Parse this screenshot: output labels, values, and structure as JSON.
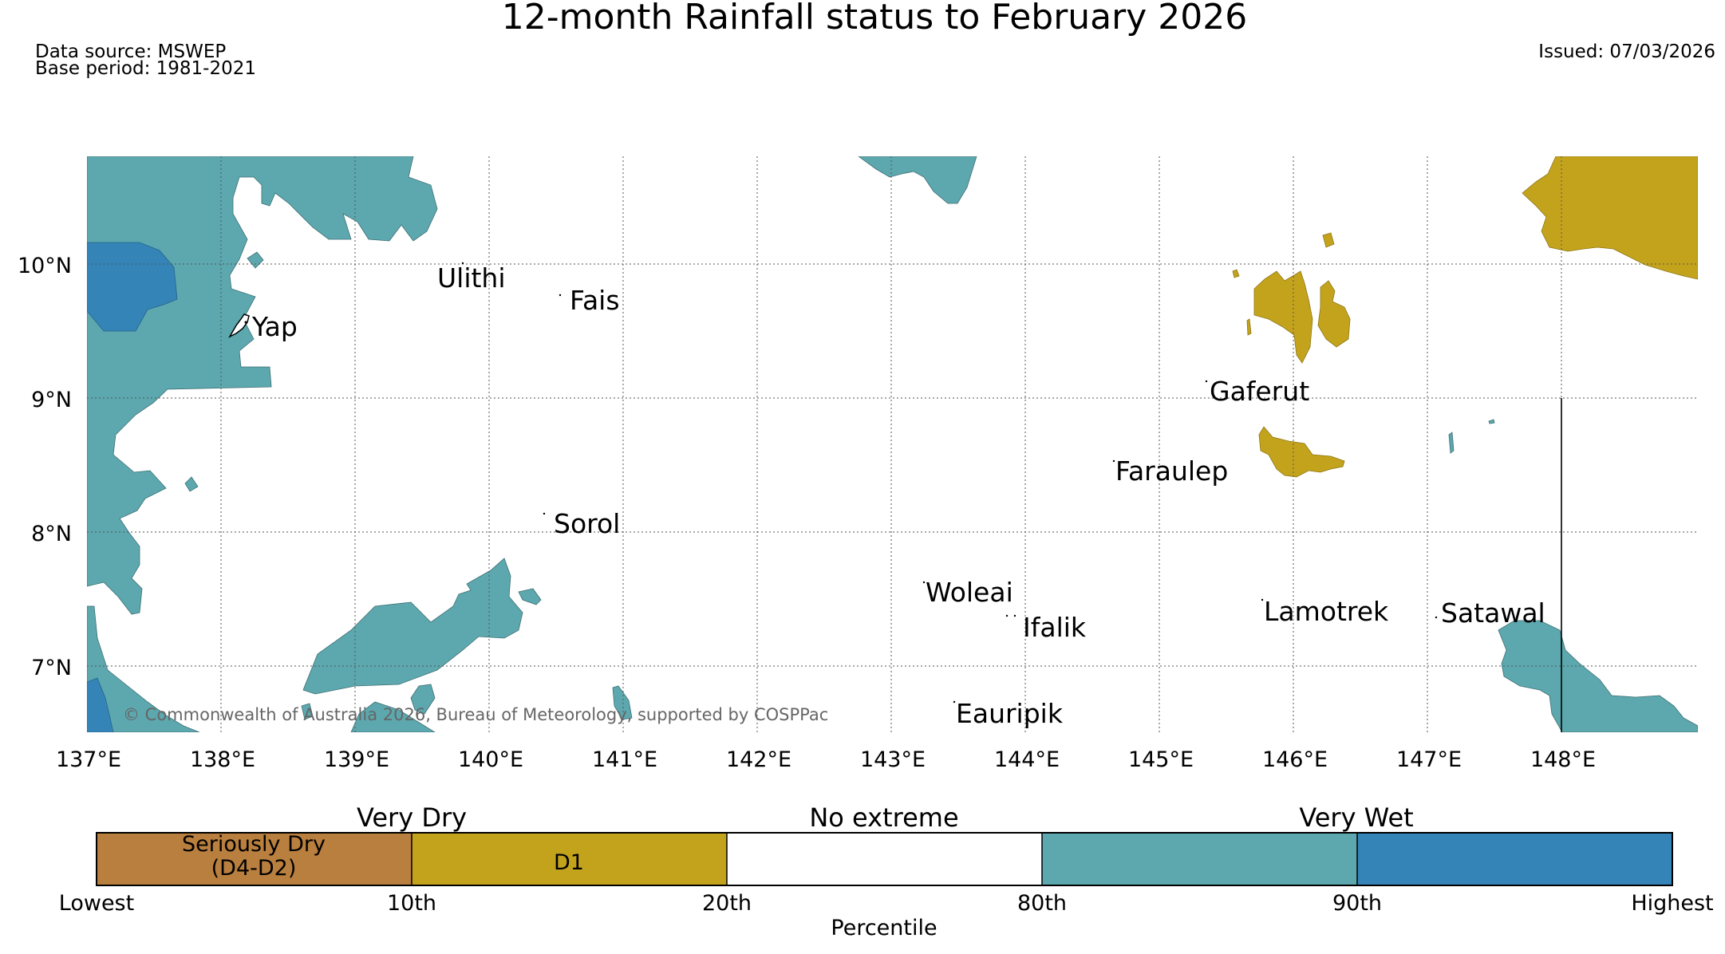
{
  "title": "12-month Rainfall status to February 2026",
  "data_source": "Data source: MSWEP",
  "base_period": "Base period: 1981-2021",
  "issued": "Issued: 07/03/2026",
  "copyright": "© Commonwealth of Australia 2026, Bureau of Meteorology, supported by COSPPac",
  "map": {
    "lat_labels": [
      "10°N",
      "9°N",
      "8°N",
      "7°N"
    ],
    "lon_labels": [
      "137°E",
      "138°E",
      "139°E",
      "140°E",
      "141°E",
      "142°E",
      "143°E",
      "144°E",
      "145°E",
      "146°E",
      "147°E",
      "148°E"
    ],
    "places": [
      {
        "name": "Yap",
        "lon": 138.2,
        "lat": 9.5
      },
      {
        "name": "Ulithi",
        "lon": 139.7,
        "lat": 9.9
      },
      {
        "name": "Fais",
        "lon": 140.5,
        "lat": 9.75
      },
      {
        "name": "Gaferut",
        "lon": 145.4,
        "lat": 9.05
      },
      {
        "name": "Faraulep",
        "lon": 144.65,
        "lat": 8.55
      },
      {
        "name": "Sorol",
        "lon": 140.4,
        "lat": 8.1
      },
      {
        "name": "Woleai",
        "lon": 143.3,
        "lat": 7.6
      },
      {
        "name": "Ifalik",
        "lon": 144.0,
        "lat": 7.3
      },
      {
        "name": "Lamotrek",
        "lon": 145.75,
        "lat": 7.45
      },
      {
        "name": "Satawal",
        "lon": 147.1,
        "lat": 7.35
      },
      {
        "name": "Eauripik",
        "lon": 143.5,
        "lat": 6.7
      }
    ]
  },
  "legend": {
    "groups": [
      "Very Dry",
      "No extreme",
      "Very Wet"
    ],
    "categories": [
      {
        "line1": "Seriously Dry",
        "line2": "(D4-D2)",
        "color": "#b97f3e"
      },
      {
        "line1": "D1",
        "line2": "",
        "color": "#c4a31c"
      },
      {
        "line1": "",
        "line2": "",
        "color": "#ffffff"
      },
      {
        "line1": "",
        "line2": "",
        "color": "#5ca8ae"
      },
      {
        "line1": "",
        "line2": "",
        "color": "#3484b7"
      }
    ],
    "ticks": [
      "Lowest",
      "10th",
      "20th",
      "80th",
      "90th",
      "Highest"
    ],
    "axis_label": "Percentile"
  },
  "colors": {
    "seriously_dry": "#b97f3e",
    "d1": "#c4a31c",
    "wet_80": "#5ca8ae",
    "wet_90": "#3484b7"
  }
}
